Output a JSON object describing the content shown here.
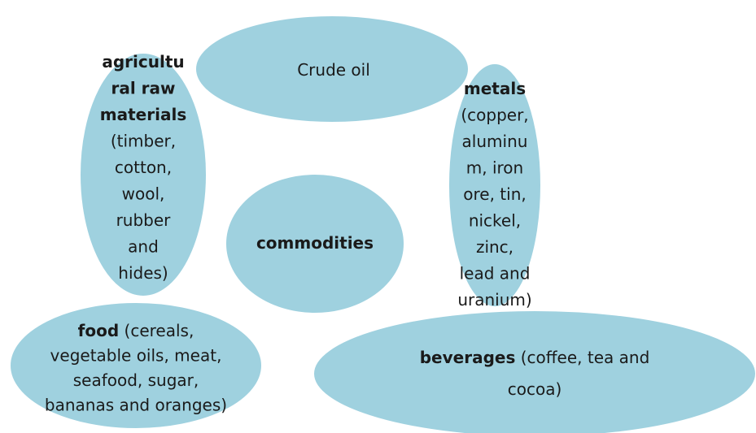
{
  "nodes": [
    {
      "lines": [
        [
          {
            "text": "Crude oil"
          }
        ]
      ]
    },
    {
      "lines": [
        [
          {
            "text": "agricultu",
            "weight": "bold"
          }
        ],
        [
          {
            "text": "ral raw",
            "weight": "bold"
          }
        ],
        [
          {
            "text": "materials",
            "weight": "bold"
          }
        ],
        [
          {
            "text": "(timber,"
          }
        ],
        [
          {
            "text": "cotton,"
          }
        ],
        [
          {
            "text": "wool,"
          }
        ],
        [
          {
            "text": "rubber"
          }
        ],
        [
          {
            "text": "and"
          }
        ],
        [
          {
            "text": "hides)"
          }
        ]
      ]
    },
    {
      "lines": [
        [
          {
            "text": "metals",
            "weight": "bold"
          }
        ],
        [
          {
            "text": "(copper,"
          }
        ],
        [
          {
            "text": "aluminu"
          }
        ],
        [
          {
            "text": "m, iron"
          }
        ],
        [
          {
            "text": "ore, tin,"
          }
        ],
        [
          {
            "text": "nickel,"
          }
        ],
        [
          {
            "text": "zinc,"
          }
        ],
        [
          {
            "text": "lead and"
          }
        ],
        [
          {
            "text": "uranium)"
          }
        ]
      ]
    },
    {
      "lines": [
        [
          {
            "text": "commodities",
            "weight": "bold"
          }
        ]
      ]
    },
    {
      "lines": [
        [
          {
            "text": "food",
            "weight": "bold"
          },
          {
            "text": " (cereals,"
          }
        ],
        [
          {
            "text": "vegetable oils, meat,"
          }
        ],
        [
          {
            "text": "seafood, sugar,"
          }
        ],
        [
          {
            "text": "bananas and oranges)"
          }
        ]
      ]
    },
    {
      "lines": [
        [
          {
            "text": "beverages",
            "weight": "bold"
          },
          {
            "text": " (coffee, tea and"
          }
        ],
        [
          {
            "text": "cocoa)"
          }
        ]
      ]
    }
  ]
}
